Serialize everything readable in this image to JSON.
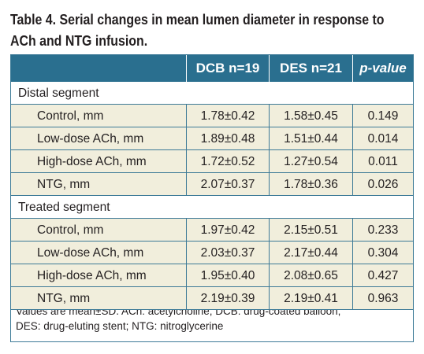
{
  "title": {
    "line1": "Table 4. Serial changes in mean lumen diameter in response to",
    "line2": "ACh and NTG infusion."
  },
  "header": {
    "blank": "",
    "col1": "DCB n=19",
    "col2": "DES n=21",
    "col3": "p-value"
  },
  "sections": [
    {
      "label": "Distal segment",
      "rows": [
        {
          "label": "Control, mm",
          "dcb": "1.78±0.42",
          "des": "1.58±0.45",
          "p": "0.149"
        },
        {
          "label": "Low-dose ACh, mm",
          "dcb": "1.89±0.48",
          "des": "1.51±0.44",
          "p": "0.014"
        },
        {
          "label": "High-dose ACh, mm",
          "dcb": "1.72±0.52",
          "des": "1.27±0.54",
          "p": "0.011"
        },
        {
          "label": "NTG, mm",
          "dcb": "2.07±0.37",
          "des": "1.78±0.36",
          "p": "0.026"
        }
      ]
    },
    {
      "label": "Treated segment",
      "rows": [
        {
          "label": "Control, mm",
          "dcb": "1.97±0.42",
          "des": "2.15±0.51",
          "p": "0.233"
        },
        {
          "label": "Low-dose ACh, mm",
          "dcb": "2.03±0.37",
          "des": "2.17±0.44",
          "p": "0.304"
        },
        {
          "label": "High-dose ACh, mm",
          "dcb": "1.95±0.40",
          "des": "2.08±0.65",
          "p": "0.427"
        },
        {
          "label": "NTG, mm",
          "dcb": "2.19±0.39",
          "des": "2.19±0.41",
          "p": "0.963"
        }
      ]
    }
  ],
  "footnote": {
    "line1": "Values are mean±SD. ACh: acetylcholine; DCB: drug-coated balloon;",
    "line2": "DES: drug-eluting stent; NTG: nitroglycerine"
  },
  "colors": {
    "header_bg": "#2a6f8f",
    "row_bg": "#f1eedc",
    "rule": "#3d7a97"
  }
}
